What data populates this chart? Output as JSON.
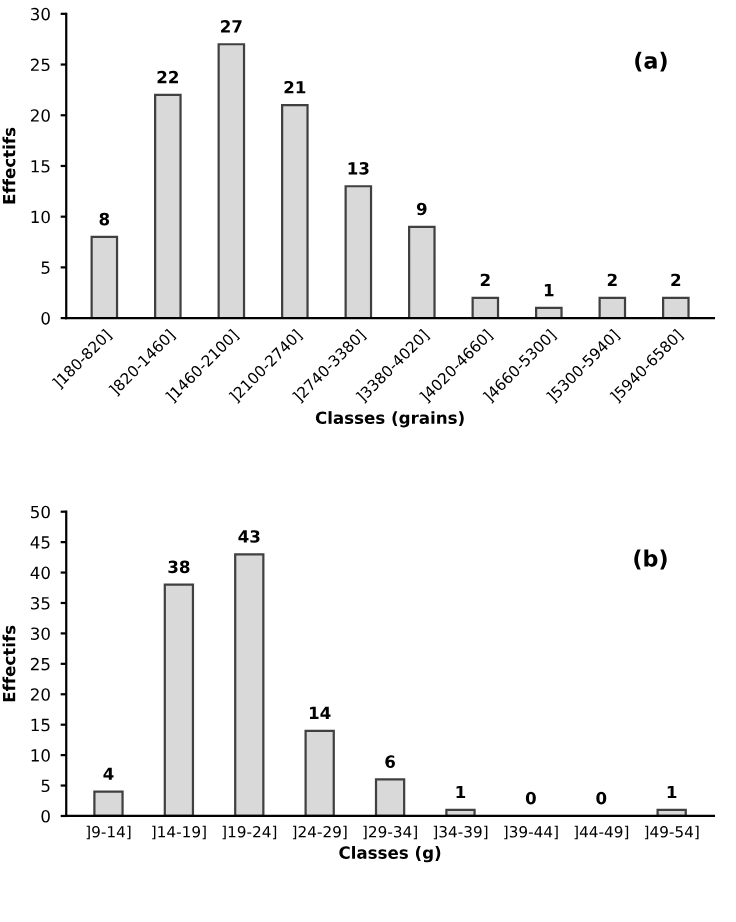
{
  "chart_data": [
    {
      "type": "bar",
      "xlabel": "Classes (grains)",
      "ylabel": "Effectifs",
      "annotations": [
        "(a)"
      ],
      "categories": [
        "]180-820]",
        "]820-1460]",
        "]1460-2100]",
        "]2100-2740]",
        "]2740-3380]",
        "]3380-4020]",
        "]4020-4660]",
        "]4660-5300]",
        "]5300-5940]",
        "]5940-6580]"
      ],
      "values": [
        8,
        22,
        27,
        21,
        13,
        9,
        2,
        1,
        2,
        2
      ],
      "color": "#d9d9d9",
      "data_labels": true,
      "ylim": [
        0,
        30
      ],
      "yticks": [
        0,
        5,
        10,
        15,
        20,
        25,
        30
      ],
      "grid": false,
      "legend": false
    },
    {
      "type": "bar",
      "xlabel": "Classes (g)",
      "ylabel": "Effectifs",
      "annotations": [
        "(b)"
      ],
      "categories": [
        "]9-14]",
        "]14-19]",
        "]19-24]",
        "]24-29]",
        "]29-34]",
        "]34-39]",
        "]39-44]",
        "]44-49]",
        "]49-54]"
      ],
      "values": [
        4,
        38,
        43,
        14,
        6,
        1,
        0,
        0,
        1
      ],
      "color": "#d9d9d9",
      "data_labels": true,
      "ylim": [
        0,
        50
      ],
      "yticks": [
        0,
        5,
        10,
        15,
        20,
        25,
        30,
        35,
        40,
        45,
        50
      ],
      "grid": false,
      "legend": false
    }
  ]
}
